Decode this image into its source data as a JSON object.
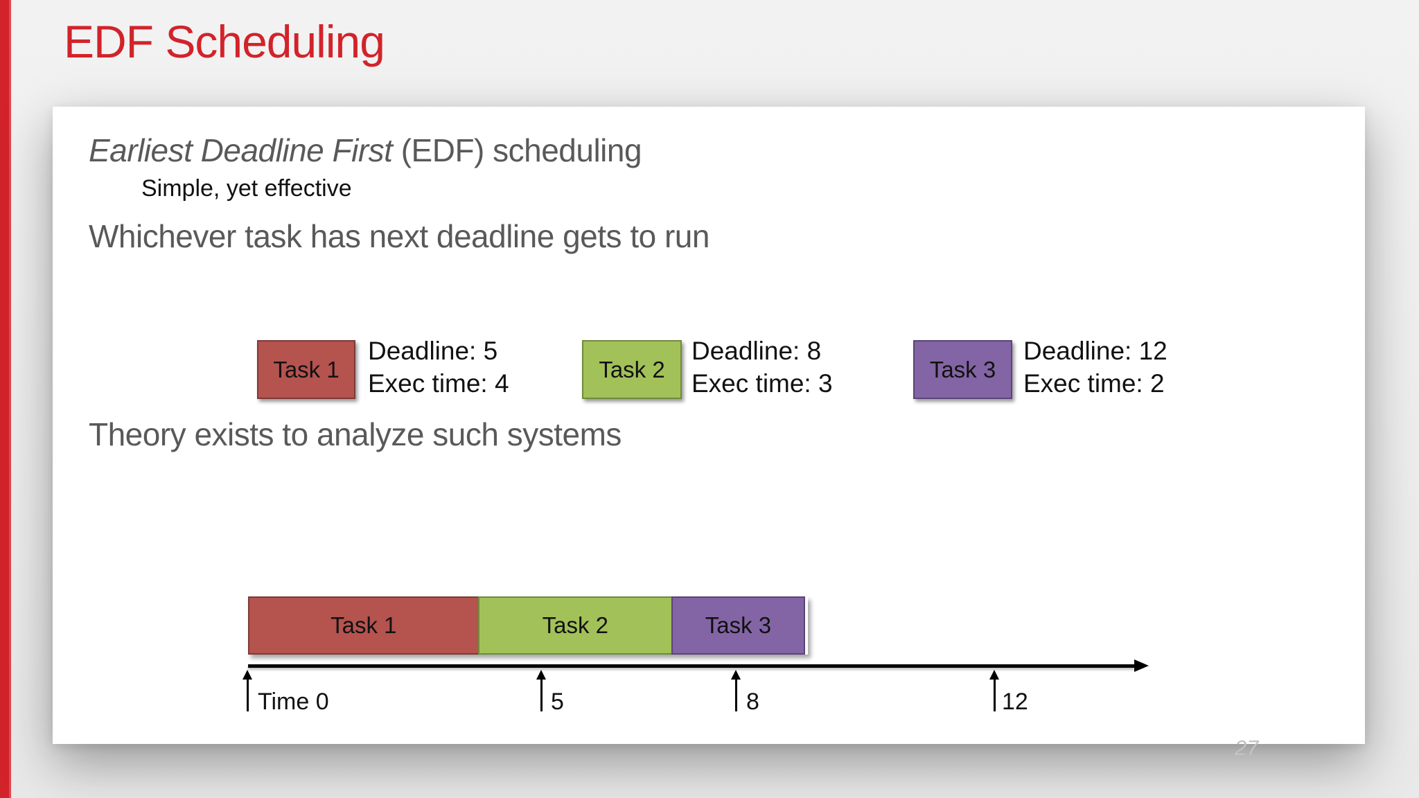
{
  "slide": {
    "title": "EDF Scheduling",
    "page_number": "27",
    "accent_color": "#d2232a",
    "background_color": "#f0f0f0",
    "panel_color": "#ffffff"
  },
  "content": {
    "heading_italic": "Earliest Deadline First",
    "heading_rest": " (EDF) scheduling",
    "subheading": "Simple, yet effective",
    "line_whichever": "Whichever task has next deadline gets to run",
    "line_theory": "Theory exists to analyze such systems"
  },
  "tasks": [
    {
      "name": "Task 1",
      "deadline_label": "Deadline: 5",
      "exec_label": "Exec time: 4",
      "deadline": 5,
      "exec_time": 4,
      "fill_color": "#b5534f",
      "border_color": "#7d3a37"
    },
    {
      "name": "Task 2",
      "deadline_label": "Deadline: 8",
      "exec_label": "Exec time: 3",
      "deadline": 8,
      "exec_time": 3,
      "fill_color": "#a2c159",
      "border_color": "#6f8a3c"
    },
    {
      "name": "Task 3",
      "deadline_label": "Deadline: 12",
      "exec_label": "Exec time: 2",
      "deadline": 12,
      "exec_time": 2,
      "fill_color": "#8365a5",
      "border_color": "#5a4577"
    }
  ],
  "timeline": {
    "type": "gantt",
    "axis_start": 0,
    "axis_end": 12,
    "schedule": [
      {
        "label": "Task 1",
        "start": 0,
        "end": 4,
        "fill_color": "#b5534f"
      },
      {
        "label": "Task 2",
        "start": 4,
        "end": 7,
        "fill_color": "#a2c159"
      },
      {
        "label": "Task 3",
        "start": 7,
        "end": 9,
        "fill_color": "#8365a5"
      }
    ],
    "ticks": [
      {
        "label": "Time 0",
        "time": 0
      },
      {
        "label": "5",
        "time": 5
      },
      {
        "label": "8",
        "time": 8
      },
      {
        "label": "12",
        "time": 12
      }
    ]
  }
}
